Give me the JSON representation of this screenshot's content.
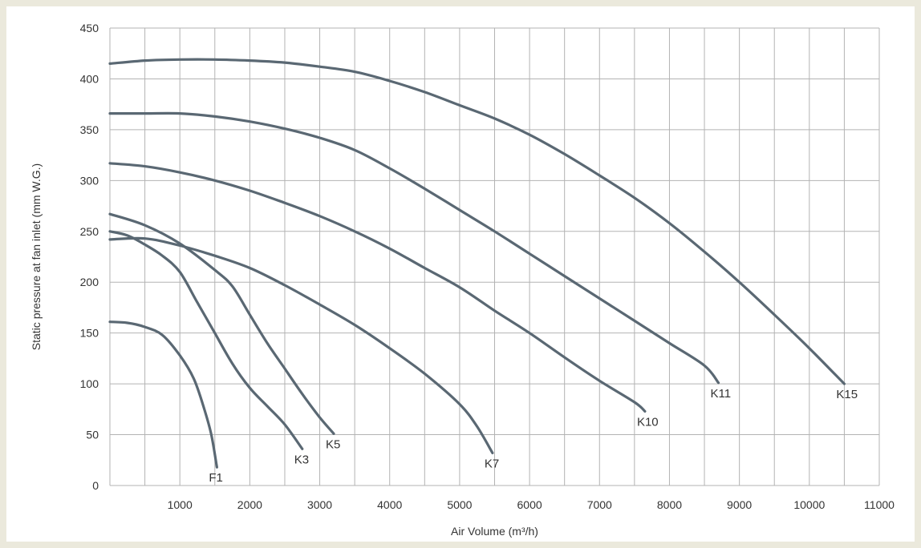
{
  "chart_data": {
    "type": "line",
    "xlabel": "Air Volume (m³/h)",
    "ylabel": "Static pressure at fan inlet (mm W.G.)",
    "xlim": [
      0,
      11000
    ],
    "ylim": [
      0,
      450
    ],
    "x_ticks": [
      "1000",
      "2000",
      "3000",
      "4000",
      "5000",
      "6000",
      "7000",
      "8000",
      "9000",
      "10000",
      "11000"
    ],
    "y_ticks": [
      "0",
      "50",
      "100",
      "150",
      "200",
      "250",
      "300",
      "350",
      "400",
      "450"
    ],
    "grid": true,
    "colors": {
      "line": "#5a6873",
      "grid": "#b3b3b3",
      "background": "#ffffff",
      "frame": "#ebe9dc"
    },
    "series": [
      {
        "name": "F1",
        "points": [
          [
            0,
            161
          ],
          [
            250,
            160
          ],
          [
            500,
            156
          ],
          [
            750,
            148
          ],
          [
            1000,
            128
          ],
          [
            1200,
            105
          ],
          [
            1350,
            75
          ],
          [
            1450,
            50
          ],
          [
            1530,
            18
          ]
        ]
      },
      {
        "name": "K3",
        "points": [
          [
            0,
            250
          ],
          [
            250,
            246
          ],
          [
            500,
            237
          ],
          [
            750,
            226
          ],
          [
            1000,
            210
          ],
          [
            1250,
            180
          ],
          [
            1500,
            150
          ],
          [
            1750,
            120
          ],
          [
            2000,
            96
          ],
          [
            2250,
            78
          ],
          [
            2500,
            60
          ],
          [
            2750,
            36
          ]
        ]
      },
      {
        "name": "K5",
        "points": [
          [
            0,
            267
          ],
          [
            500,
            256
          ],
          [
            1000,
            238
          ],
          [
            1500,
            212
          ],
          [
            1750,
            196
          ],
          [
            2000,
            168
          ],
          [
            2250,
            140
          ],
          [
            2500,
            115
          ],
          [
            2750,
            90
          ],
          [
            3000,
            67
          ],
          [
            3200,
            51
          ]
        ]
      },
      {
        "name": "K7",
        "points": [
          [
            0,
            242
          ],
          [
            500,
            243
          ],
          [
            1000,
            236
          ],
          [
            1500,
            226
          ],
          [
            2000,
            214
          ],
          [
            2500,
            197
          ],
          [
            3000,
            178
          ],
          [
            3500,
            158
          ],
          [
            4000,
            135
          ],
          [
            4500,
            110
          ],
          [
            5000,
            80
          ],
          [
            5250,
            58
          ],
          [
            5470,
            32
          ]
        ]
      },
      {
        "name": "K10",
        "points": [
          [
            0,
            317
          ],
          [
            500,
            314
          ],
          [
            1000,
            308
          ],
          [
            1500,
            300
          ],
          [
            2000,
            290
          ],
          [
            2500,
            278
          ],
          [
            3000,
            265
          ],
          [
            3500,
            250
          ],
          [
            4000,
            233
          ],
          [
            4500,
            214
          ],
          [
            5000,
            195
          ],
          [
            5500,
            172
          ],
          [
            6000,
            150
          ],
          [
            6500,
            126
          ],
          [
            7000,
            103
          ],
          [
            7500,
            82
          ],
          [
            7650,
            73
          ]
        ]
      },
      {
        "name": "K11",
        "points": [
          [
            0,
            366
          ],
          [
            500,
            366
          ],
          [
            1000,
            366
          ],
          [
            1500,
            363
          ],
          [
            2000,
            358
          ],
          [
            2500,
            351
          ],
          [
            3000,
            342
          ],
          [
            3500,
            330
          ],
          [
            4000,
            312
          ],
          [
            4500,
            292
          ],
          [
            5000,
            271
          ],
          [
            5500,
            250
          ],
          [
            6000,
            228
          ],
          [
            6500,
            206
          ],
          [
            7000,
            184
          ],
          [
            7500,
            162
          ],
          [
            8000,
            140
          ],
          [
            8500,
            118
          ],
          [
            8700,
            101
          ]
        ]
      },
      {
        "name": "K15",
        "points": [
          [
            0,
            415
          ],
          [
            500,
            418
          ],
          [
            1000,
            419
          ],
          [
            1500,
            419
          ],
          [
            2000,
            418
          ],
          [
            2500,
            416
          ],
          [
            3000,
            412
          ],
          [
            3500,
            407
          ],
          [
            4000,
            398
          ],
          [
            4500,
            387
          ],
          [
            5000,
            374
          ],
          [
            5500,
            361
          ],
          [
            6000,
            345
          ],
          [
            6500,
            326
          ],
          [
            7000,
            305
          ],
          [
            7500,
            283
          ],
          [
            8000,
            258
          ],
          [
            8500,
            230
          ],
          [
            9000,
            200
          ],
          [
            9500,
            168
          ],
          [
            10000,
            135
          ],
          [
            10500,
            100
          ]
        ]
      }
    ]
  }
}
